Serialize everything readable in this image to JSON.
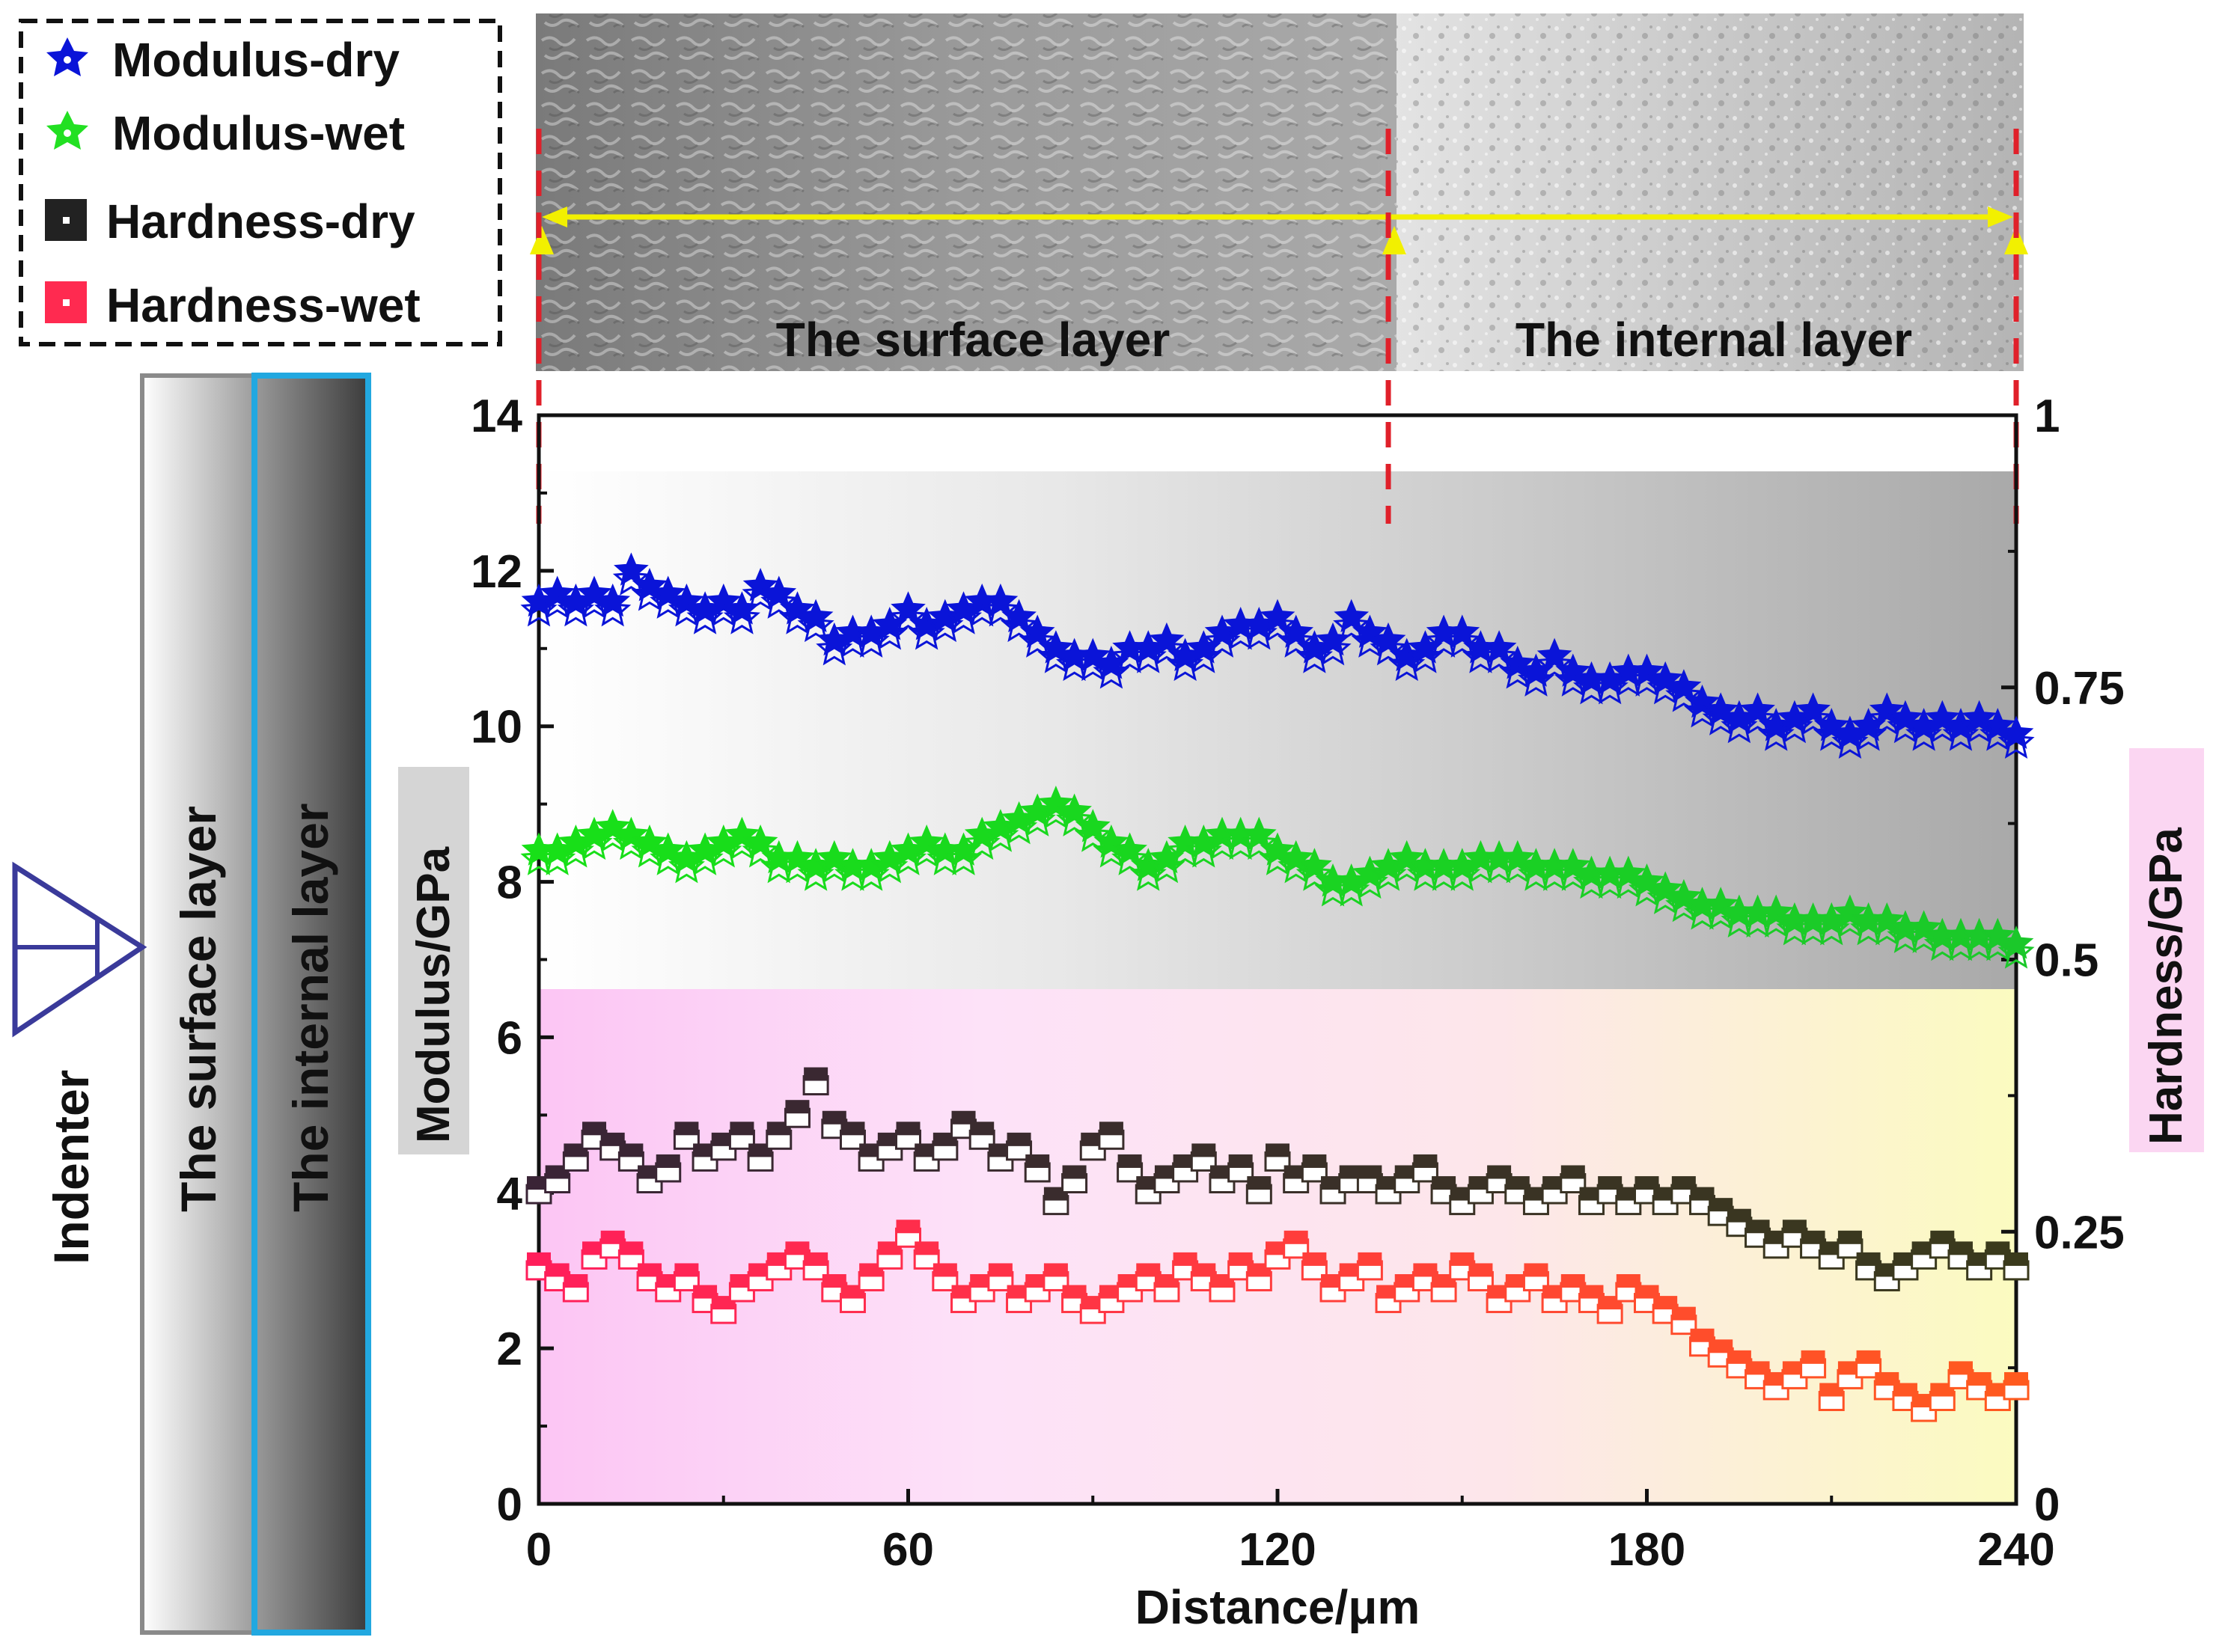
{
  "chart_data": {
    "type": "scatter",
    "xlabel": "Distance/μm",
    "ylabel": "Modulus/GPa",
    "y2label": "Hardness/GPa",
    "xlim": [
      0,
      240
    ],
    "ylim": [
      0,
      14
    ],
    "y2lim": [
      0,
      1
    ],
    "x_ticks": [
      "0",
      "60",
      "120",
      "180",
      "240"
    ],
    "y_ticks": [
      "0",
      "2",
      "4",
      "6",
      "8",
      "10",
      "12",
      "14"
    ],
    "y2_ticks": [
      "0",
      "0.25",
      "0.5",
      "0.75",
      "1"
    ],
    "legend": [
      {
        "name": "Modulus-dry",
        "color": "#0a14d8",
        "marker": "star"
      },
      {
        "name": "Modulus-wet",
        "color": "#22e022",
        "marker": "star"
      },
      {
        "name": "Hardness-dry",
        "color": "#222222",
        "marker": "square"
      },
      {
        "name": "Hardness-wet",
        "color": "#ff2a50",
        "marker": "square"
      }
    ],
    "sem_labels": {
      "surface": "The surface layer",
      "internal": "The internal layer"
    },
    "boundary_x": [
      0,
      138,
      240
    ],
    "schematic": {
      "indenter": "Indenter",
      "surface_layer": "The surface layer",
      "internal_layer": "The internal layer"
    },
    "series": [
      {
        "name": "Modulus-dry",
        "axis": "left",
        "x": [
          0,
          3,
          6,
          9,
          12,
          15,
          18,
          21,
          24,
          27,
          30,
          33,
          36,
          39,
          42,
          45,
          48,
          51,
          54,
          57,
          60,
          63,
          66,
          69,
          72,
          75,
          78,
          81,
          84,
          87,
          90,
          93,
          96,
          99,
          102,
          105,
          108,
          111,
          114,
          117,
          120,
          123,
          126,
          129,
          132,
          135,
          138,
          141,
          144,
          147,
          150,
          153,
          156,
          159,
          162,
          165,
          168,
          171,
          174,
          177,
          180,
          183,
          186,
          189,
          192,
          195,
          198,
          201,
          204,
          207,
          210,
          213,
          216,
          219,
          222,
          225,
          228,
          231,
          234,
          237,
          240
        ],
        "values": [
          11.6,
          11.7,
          11.6,
          11.7,
          11.6,
          12.0,
          11.8,
          11.7,
          11.6,
          11.5,
          11.6,
          11.5,
          11.8,
          11.7,
          11.5,
          11.4,
          11.1,
          11.2,
          11.2,
          11.3,
          11.5,
          11.3,
          11.4,
          11.5,
          11.6,
          11.6,
          11.4,
          11.2,
          11.0,
          10.9,
          10.9,
          10.8,
          11.0,
          11.0,
          11.1,
          10.9,
          11.0,
          11.2,
          11.3,
          11.3,
          11.4,
          11.2,
          11.0,
          11.1,
          11.4,
          11.2,
          11.1,
          10.9,
          11.0,
          11.2,
          11.2,
          11.0,
          11.0,
          10.8,
          10.7,
          10.9,
          10.7,
          10.6,
          10.6,
          10.7,
          10.7,
          10.6,
          10.5,
          10.3,
          10.2,
          10.1,
          10.2,
          10.0,
          10.1,
          10.2,
          10.0,
          9.9,
          10.0,
          10.2,
          10.1,
          10.0,
          10.1,
          10.0,
          10.1,
          10.0,
          9.9
        ]
      },
      {
        "name": "Modulus-wet",
        "axis": "left",
        "x": [
          0,
          3,
          6,
          9,
          12,
          15,
          18,
          21,
          24,
          27,
          30,
          33,
          36,
          39,
          42,
          45,
          48,
          51,
          54,
          57,
          60,
          63,
          66,
          69,
          72,
          75,
          78,
          81,
          84,
          87,
          90,
          93,
          96,
          99,
          102,
          105,
          108,
          111,
          114,
          117,
          120,
          123,
          126,
          129,
          132,
          135,
          138,
          141,
          144,
          147,
          150,
          153,
          156,
          159,
          162,
          165,
          168,
          171,
          174,
          177,
          180,
          183,
          186,
          189,
          192,
          195,
          198,
          201,
          204,
          207,
          210,
          213,
          216,
          219,
          222,
          225,
          228,
          231,
          234,
          237,
          240
        ],
        "values": [
          8.4,
          8.4,
          8.5,
          8.6,
          8.7,
          8.6,
          8.5,
          8.4,
          8.3,
          8.4,
          8.5,
          8.6,
          8.5,
          8.3,
          8.3,
          8.2,
          8.3,
          8.2,
          8.2,
          8.3,
          8.4,
          8.5,
          8.4,
          8.4,
          8.6,
          8.7,
          8.8,
          8.9,
          9.0,
          8.9,
          8.7,
          8.5,
          8.4,
          8.2,
          8.3,
          8.5,
          8.5,
          8.6,
          8.6,
          8.6,
          8.4,
          8.3,
          8.2,
          8.0,
          8.0,
          8.1,
          8.2,
          8.3,
          8.2,
          8.2,
          8.2,
          8.3,
          8.3,
          8.3,
          8.2,
          8.2,
          8.2,
          8.1,
          8.1,
          8.1,
          8.0,
          7.9,
          7.8,
          7.7,
          7.7,
          7.6,
          7.6,
          7.6,
          7.5,
          7.5,
          7.5,
          7.6,
          7.5,
          7.5,
          7.4,
          7.4,
          7.3,
          7.3,
          7.3,
          7.3,
          7.2
        ]
      },
      {
        "name": "Hardness-dry",
        "axis": "right",
        "x": [
          0,
          3,
          6,
          9,
          12,
          15,
          18,
          21,
          24,
          27,
          30,
          33,
          36,
          39,
          42,
          45,
          48,
          51,
          54,
          57,
          60,
          63,
          66,
          69,
          72,
          75,
          78,
          81,
          84,
          87,
          90,
          93,
          96,
          99,
          102,
          105,
          108,
          111,
          114,
          117,
          120,
          123,
          126,
          129,
          132,
          135,
          138,
          141,
          144,
          147,
          150,
          153,
          156,
          159,
          162,
          165,
          168,
          171,
          174,
          177,
          180,
          183,
          186,
          189,
          192,
          195,
          198,
          201,
          204,
          207,
          210,
          213,
          216,
          219,
          222,
          225,
          228,
          231,
          234,
          237,
          240
        ],
        "values": [
          0.29,
          0.3,
          0.32,
          0.34,
          0.33,
          0.32,
          0.3,
          0.31,
          0.34,
          0.32,
          0.33,
          0.34,
          0.32,
          0.34,
          0.36,
          0.39,
          0.35,
          0.34,
          0.32,
          0.33,
          0.34,
          0.32,
          0.33,
          0.35,
          0.34,
          0.32,
          0.33,
          0.31,
          0.28,
          0.3,
          0.33,
          0.34,
          0.31,
          0.29,
          0.3,
          0.31,
          0.32,
          0.3,
          0.31,
          0.29,
          0.32,
          0.3,
          0.31,
          0.29,
          0.3,
          0.3,
          0.29,
          0.3,
          0.31,
          0.29,
          0.28,
          0.29,
          0.3,
          0.29,
          0.28,
          0.29,
          0.3,
          0.28,
          0.29,
          0.28,
          0.29,
          0.28,
          0.29,
          0.28,
          0.27,
          0.26,
          0.25,
          0.24,
          0.25,
          0.24,
          0.23,
          0.24,
          0.22,
          0.21,
          0.22,
          0.23,
          0.24,
          0.23,
          0.22,
          0.23,
          0.22
        ]
      },
      {
        "name": "Hardness-wet",
        "axis": "right",
        "x": [
          0,
          3,
          6,
          9,
          12,
          15,
          18,
          21,
          24,
          27,
          30,
          33,
          36,
          39,
          42,
          45,
          48,
          51,
          54,
          57,
          60,
          63,
          66,
          69,
          72,
          75,
          78,
          81,
          84,
          87,
          90,
          93,
          96,
          99,
          102,
          105,
          108,
          111,
          114,
          117,
          120,
          123,
          126,
          129,
          132,
          135,
          138,
          141,
          144,
          147,
          150,
          153,
          156,
          159,
          162,
          165,
          168,
          171,
          174,
          177,
          180,
          183,
          186,
          189,
          192,
          195,
          198,
          201,
          204,
          207,
          210,
          213,
          216,
          219,
          222,
          225,
          228,
          231,
          234,
          237,
          240
        ],
        "values": [
          0.22,
          0.21,
          0.2,
          0.23,
          0.24,
          0.23,
          0.21,
          0.2,
          0.21,
          0.19,
          0.18,
          0.2,
          0.21,
          0.22,
          0.23,
          0.22,
          0.2,
          0.19,
          0.21,
          0.23,
          0.25,
          0.23,
          0.21,
          0.19,
          0.2,
          0.21,
          0.19,
          0.2,
          0.21,
          0.19,
          0.18,
          0.19,
          0.2,
          0.21,
          0.2,
          0.22,
          0.21,
          0.2,
          0.22,
          0.21,
          0.23,
          0.24,
          0.22,
          0.2,
          0.21,
          0.22,
          0.19,
          0.2,
          0.21,
          0.2,
          0.22,
          0.21,
          0.19,
          0.2,
          0.21,
          0.19,
          0.2,
          0.19,
          0.18,
          0.2,
          0.19,
          0.18,
          0.17,
          0.15,
          0.14,
          0.13,
          0.12,
          0.11,
          0.12,
          0.13,
          0.1,
          0.12,
          0.13,
          0.11,
          0.1,
          0.09,
          0.1,
          0.12,
          0.11,
          0.1,
          0.11
        ]
      }
    ]
  }
}
